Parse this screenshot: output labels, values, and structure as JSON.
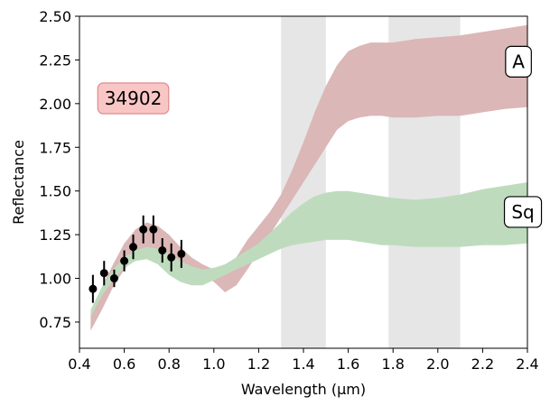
{
  "chart_data": {
    "type": "area",
    "xlabel": "Wavelength (µm)",
    "ylabel": "Reflectance",
    "xlim": [
      0.4,
      2.4
    ],
    "ylim": [
      0.6,
      2.5
    ],
    "xticks": [
      "0.4",
      "0.6",
      "0.8",
      "1.0",
      "1.2",
      "1.4",
      "1.6",
      "1.8",
      "2.0",
      "2.2",
      "2.4"
    ],
    "xtick_values": [
      0.4,
      0.6,
      0.8,
      1.0,
      1.2,
      1.4,
      1.6,
      1.8,
      2.0,
      2.2,
      2.4
    ],
    "yticks": [
      "0.75",
      "1.00",
      "1.25",
      "1.50",
      "1.75",
      "2.00",
      "2.25",
      "2.50"
    ],
    "ytick_values": [
      0.75,
      1.0,
      1.25,
      1.5,
      1.75,
      2.0,
      2.25,
      2.5
    ],
    "grid": false,
    "shaded_regions": [
      {
        "x": [
          1.3,
          1.5
        ],
        "color": "#e6e6e6"
      },
      {
        "x": [
          1.78,
          2.1
        ],
        "color": "#e6e6e6"
      }
    ],
    "bands": [
      {
        "name": "A",
        "color": "#dbb7b7",
        "x": [
          0.45,
          0.5,
          0.55,
          0.6,
          0.65,
          0.7,
          0.75,
          0.8,
          0.85,
          0.9,
          0.95,
          1.0,
          1.05,
          1.1,
          1.15,
          1.2,
          1.25,
          1.3,
          1.35,
          1.4,
          1.45,
          1.5,
          1.55,
          1.6,
          1.65,
          1.7,
          1.75,
          1.8,
          1.9,
          2.0,
          2.1,
          2.2,
          2.3,
          2.4
        ],
        "upper": [
          0.8,
          0.95,
          1.08,
          1.2,
          1.28,
          1.32,
          1.3,
          1.25,
          1.18,
          1.12,
          1.08,
          1.05,
          1.06,
          1.12,
          1.22,
          1.3,
          1.38,
          1.48,
          1.62,
          1.78,
          1.95,
          2.1,
          2.22,
          2.3,
          2.33,
          2.35,
          2.35,
          2.35,
          2.37,
          2.38,
          2.39,
          2.41,
          2.43,
          2.45
        ],
        "lower": [
          0.7,
          0.82,
          0.95,
          1.05,
          1.12,
          1.15,
          1.12,
          1.08,
          1.05,
          1.03,
          1.02,
          0.98,
          0.92,
          0.96,
          1.05,
          1.15,
          1.25,
          1.35,
          1.45,
          1.55,
          1.65,
          1.75,
          1.85,
          1.9,
          1.92,
          1.93,
          1.93,
          1.92,
          1.92,
          1.93,
          1.93,
          1.95,
          1.97,
          1.98
        ]
      },
      {
        "name": "Sq",
        "color": "#bedcbd",
        "x": [
          0.45,
          0.5,
          0.55,
          0.6,
          0.65,
          0.7,
          0.75,
          0.8,
          0.85,
          0.9,
          0.95,
          1.0,
          1.05,
          1.1,
          1.15,
          1.2,
          1.25,
          1.3,
          1.35,
          1.4,
          1.45,
          1.5,
          1.55,
          1.6,
          1.65,
          1.7,
          1.75,
          1.8,
          1.9,
          2.0,
          2.1,
          2.2,
          2.3,
          2.4
        ],
        "upper": [
          0.82,
          0.95,
          1.05,
          1.12,
          1.16,
          1.18,
          1.17,
          1.14,
          1.1,
          1.07,
          1.05,
          1.06,
          1.08,
          1.12,
          1.16,
          1.2,
          1.26,
          1.32,
          1.38,
          1.43,
          1.47,
          1.49,
          1.5,
          1.5,
          1.49,
          1.48,
          1.47,
          1.46,
          1.45,
          1.46,
          1.48,
          1.51,
          1.53,
          1.55
        ],
        "lower": [
          0.78,
          0.9,
          0.99,
          1.06,
          1.1,
          1.11,
          1.08,
          1.02,
          0.98,
          0.96,
          0.96,
          0.99,
          1.02,
          1.05,
          1.08,
          1.11,
          1.14,
          1.17,
          1.19,
          1.2,
          1.21,
          1.22,
          1.22,
          1.22,
          1.21,
          1.2,
          1.19,
          1.19,
          1.18,
          1.18,
          1.18,
          1.19,
          1.19,
          1.2
        ]
      }
    ],
    "series": [
      {
        "x": [
          0.46,
          0.51,
          0.555,
          0.6,
          0.64,
          0.685,
          0.73,
          0.77,
          0.81,
          0.855
        ],
        "y": [
          0.94,
          1.03,
          1.0,
          1.1,
          1.18,
          1.28,
          1.28,
          1.16,
          1.12,
          1.14
        ],
        "yerr": [
          0.08,
          0.07,
          0.05,
          0.06,
          0.07,
          0.08,
          0.08,
          0.07,
          0.08,
          0.08
        ],
        "color": "#000000",
        "marker": "circle"
      }
    ],
    "annotations": [
      {
        "text": "34902",
        "x": 0.64,
        "y": 2.03,
        "bg": "#f9c6c6",
        "border": "#e08a8a"
      },
      {
        "text": "A",
        "x": 2.36,
        "y": 2.24,
        "bg": "#ffffff",
        "border": "#000000"
      },
      {
        "text": "Sq",
        "x": 2.38,
        "y": 1.38,
        "bg": "#ffffff",
        "border": "#000000"
      }
    ]
  }
}
